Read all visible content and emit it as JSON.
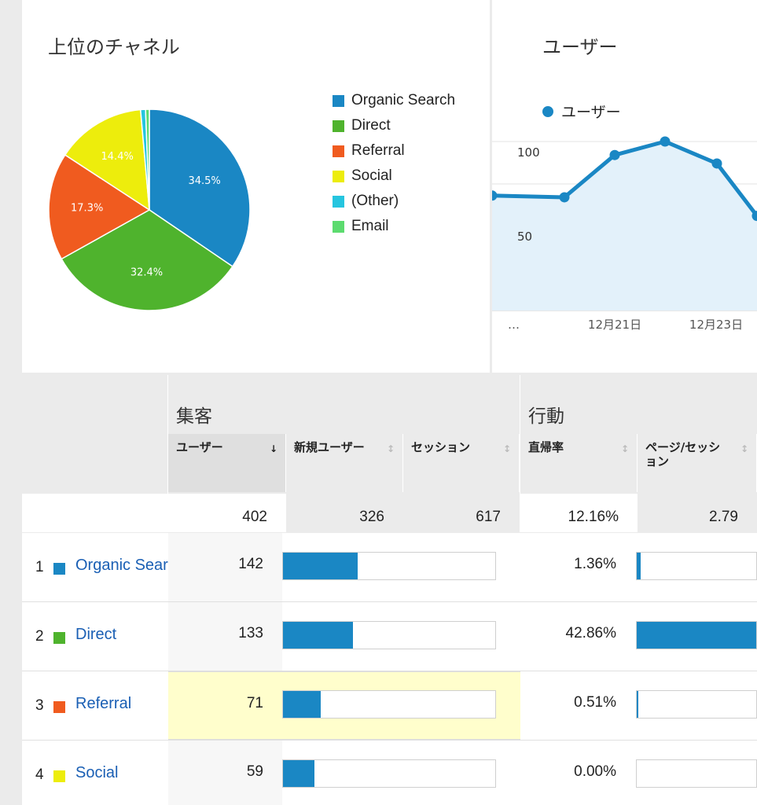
{
  "channels_panel": {
    "title": "上位のチャネル",
    "legend": [
      {
        "label": "Organic Search",
        "color": "#1a87c4"
      },
      {
        "label": "Direct",
        "color": "#4fb32d"
      },
      {
        "label": "Referral",
        "color": "#f05b1f"
      },
      {
        "label": "Social",
        "color": "#eded0c"
      },
      {
        "label": "(Other)",
        "color": "#25c5df"
      },
      {
        "label": "Email",
        "color": "#5cdb6f"
      }
    ]
  },
  "chart_data": [
    {
      "type": "pie",
      "title": "上位のチャネル",
      "categories": [
        "Organic Search",
        "Direct",
        "Referral",
        "Social",
        "(Other)",
        "Email"
      ],
      "values": [
        34.5,
        32.4,
        17.3,
        14.4,
        0.8,
        0.6
      ],
      "data_labels": [
        "34.5%",
        "32.4%",
        "17.3%",
        "14.4%",
        "",
        ""
      ],
      "colors": [
        "#1a87c4",
        "#4fb32d",
        "#f05b1f",
        "#eded0c",
        "#25c5df",
        "#5cdb6f"
      ],
      "legend_position": "right"
    },
    {
      "type": "area",
      "title": "ユーザー",
      "series": [
        {
          "name": "ユーザー",
          "values": [
            68,
            67,
            92,
            100,
            87,
            56
          ]
        }
      ],
      "x_labels": [
        "…",
        "12月21日",
        "12月23日"
      ],
      "y_ticks": [
        100,
        50
      ],
      "ylim": [
        0,
        100
      ],
      "grid": true,
      "legend_position": "top-left",
      "color": "#1a87c4",
      "fill_color": "#e3f1fa"
    }
  ],
  "users_panel": {
    "title": "ユーザー",
    "legend_label": "ユーザー",
    "y_ticks": [
      "100",
      "50"
    ],
    "x_labels": [
      "…",
      "12月21日",
      "12月23日"
    ]
  },
  "table": {
    "groups": {
      "acquisition": "集客",
      "behavior": "行動"
    },
    "columns": {
      "users": "ユーザー",
      "new_users": "新規ユーザー",
      "sessions": "セッション",
      "bounce_rate": "直帰率",
      "pages_per_session": "ページ/セッション"
    },
    "sort_icons": {
      "active": "↓",
      "inactive": "↕"
    },
    "totals": {
      "users": "402",
      "new_users": "326",
      "sessions": "617",
      "bounce_rate": "12.16%",
      "pages_per_session": "2.79"
    },
    "rows": [
      {
        "rank": "1",
        "channel": "Organic Search",
        "color": "#1a87c4",
        "users": "142",
        "users_share": 0.353,
        "bounce_rate": "1.36%",
        "bounce_share": 0.03
      },
      {
        "rank": "2",
        "channel": "Direct",
        "color": "#4fb32d",
        "users": "133",
        "users_share": 0.331,
        "bounce_rate": "42.86%",
        "bounce_share": 1.0
      },
      {
        "rank": "3",
        "channel": "Referral",
        "color": "#f05b1f",
        "users": "71",
        "users_share": 0.177,
        "bounce_rate": "0.51%",
        "bounce_share": 0.012
      },
      {
        "rank": "4",
        "channel": "Social",
        "color": "#eded0c",
        "users": "59",
        "users_share": 0.147,
        "bounce_rate": "0.00%",
        "bounce_share": 0
      }
    ]
  }
}
